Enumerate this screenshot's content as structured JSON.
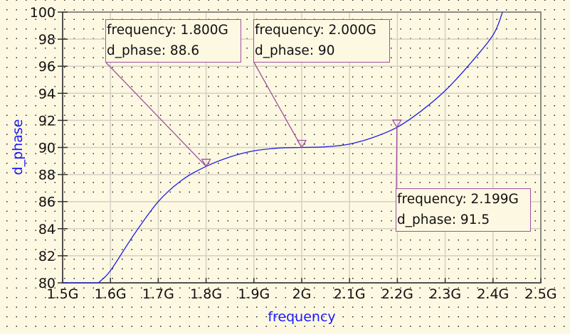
{
  "chart_data": {
    "type": "line",
    "title": "",
    "xlabel": "frequency",
    "ylabel": "d_phase",
    "xlim": [
      1.5,
      2.5
    ],
    "ylim": [
      80,
      100
    ],
    "x_unit": "G",
    "grid": true,
    "x_ticks": [
      "1.5G",
      "1.6G",
      "1.7G",
      "1.8G",
      "1.9G",
      "2G",
      "2.1G",
      "2.2G",
      "2.3G",
      "2.4G",
      "2.5G"
    ],
    "y_ticks": [
      "80",
      "82",
      "84",
      "86",
      "88",
      "90",
      "92",
      "94",
      "96",
      "98",
      "100"
    ],
    "series": [
      {
        "name": "d_phase",
        "color": "#2020e0",
        "x": [
          1.5,
          1.575,
          1.6,
          1.65,
          1.7,
          1.75,
          1.8,
          1.85,
          1.9,
          1.95,
          2.0,
          2.05,
          2.1,
          2.15,
          2.2,
          2.25,
          2.3,
          2.35,
          2.4,
          2.42
        ],
        "y": [
          80,
          80,
          80.9,
          83.6,
          86.0,
          87.6,
          88.6,
          89.3,
          89.75,
          89.95,
          90,
          90.05,
          90.25,
          90.75,
          91.5,
          92.7,
          94.2,
          96.1,
          98.3,
          100
        ]
      }
    ],
    "markers": [
      {
        "frequency_label": "frequency: 1.800G",
        "value_label": "d_phase: 88.6",
        "x": 1.8,
        "y": 88.6
      },
      {
        "frequency_label": "frequency: 2.000G",
        "value_label": "d_phase: 90",
        "x": 2.0,
        "y": 90
      },
      {
        "frequency_label": "frequency: 2.199G",
        "value_label": "d_phase: 91.5",
        "x": 2.199,
        "y": 91.5
      }
    ]
  },
  "colors": {
    "background": "#fdf8e2",
    "curve": "#2020e0",
    "marker": "#a050a0",
    "axis_title": "#1a1aff",
    "grid": "#d4d0c4"
  }
}
